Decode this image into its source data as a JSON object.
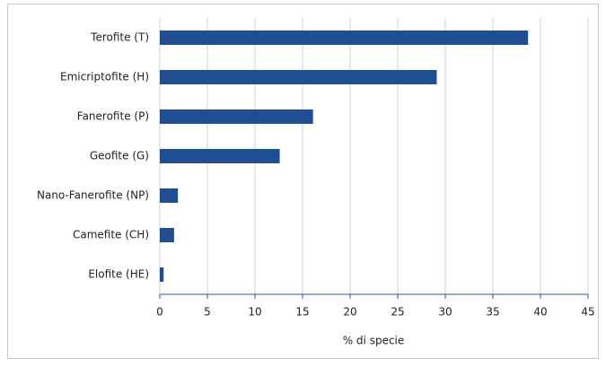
{
  "chart_data": {
    "type": "bar",
    "orientation": "horizontal",
    "categories": [
      "Terofite (T)",
      "Emicriptofite (H)",
      "Fanerofite (P)",
      "Geofite (G)",
      "Nano-Fanerofite (NP)",
      "Camefite (CH)",
      "Elofite (HE)"
    ],
    "values": [
      38.7,
      29.1,
      16.1,
      12.6,
      1.9,
      1.5,
      0.4
    ],
    "color": "#1f4e93",
    "x_label": "% di specie",
    "xlim": [
      0,
      45
    ],
    "xticks": [
      0,
      5,
      10,
      15,
      20,
      25,
      30,
      35,
      40,
      45
    ],
    "grid": true
  }
}
